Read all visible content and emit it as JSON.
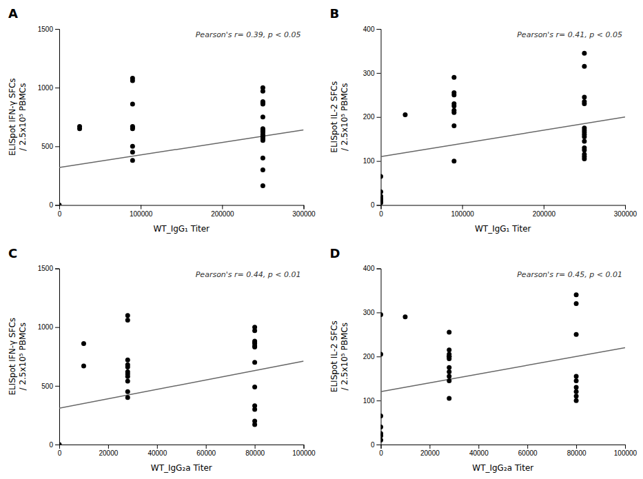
{
  "chart_data": [
    {
      "type": "scatter",
      "title": "A",
      "xlabel": "WT_IgG₁ Titer",
      "ylabel": "ELISpot IFN-γ SFCs\n/ 2.5x10⁵ PBMCs",
      "annotations": [
        "Pearson's r= 0.39, p < 0.05"
      ],
      "xlim": [
        0,
        300000
      ],
      "ylim": [
        0,
        1500
      ],
      "xticks": [
        0,
        100000,
        200000,
        300000
      ],
      "yticks": [
        0,
        500,
        1000,
        1500
      ],
      "grid": false,
      "series": [
        {
          "type": "scatter",
          "color": "#000000",
          "x": [
            0,
            25000,
            25000,
            90000,
            90000,
            90000,
            90000,
            90000,
            90000,
            90000,
            90000,
            90000,
            250000,
            250000,
            250000,
            250000,
            250000,
            250000,
            250000,
            250000,
            250000,
            250000,
            250000,
            250000,
            250000,
            250000,
            250000,
            250000,
            250000,
            250000,
            250000,
            250000
          ],
          "values": [
            0,
            650,
            670,
            1080,
            1060,
            860,
            670,
            660,
            650,
            500,
            450,
            380,
            1000,
            970,
            880,
            870,
            870,
            860,
            750,
            650,
            640,
            630,
            620,
            600,
            590,
            580,
            570,
            560,
            550,
            400,
            300,
            165
          ]
        },
        {
          "type": "line",
          "color": "#666666",
          "x": [
            0,
            300000
          ],
          "values": [
            320,
            640
          ]
        }
      ]
    },
    {
      "type": "scatter",
      "title": "B",
      "xlabel": "WT_IgG₁ Titer",
      "ylabel": "ELISpot IL-2 SFCs\n/ 2.5x10⁵ PBMCs",
      "annotations": [
        "Pearson's r= 0.41, p < 0.05"
      ],
      "xlim": [
        0,
        300000
      ],
      "ylim": [
        0,
        400
      ],
      "xticks": [
        0,
        100000,
        200000,
        300000
      ],
      "yticks": [
        0,
        100,
        200,
        300,
        400
      ],
      "grid": false,
      "series": [
        {
          "type": "scatter",
          "color": "#000000",
          "x": [
            0,
            0,
            0,
            0,
            0,
            0,
            0,
            30000,
            90000,
            90000,
            90000,
            90000,
            90000,
            90000,
            90000,
            90000,
            90000,
            250000,
            250000,
            250000,
            250000,
            250000,
            250000,
            250000,
            250000,
            250000,
            250000,
            250000,
            250000,
            250000,
            250000,
            250000,
            250000
          ],
          "values": [
            65,
            30,
            20,
            15,
            12,
            8,
            5,
            205,
            290,
            255,
            250,
            230,
            225,
            215,
            210,
            180,
            100,
            345,
            315,
            245,
            235,
            230,
            175,
            170,
            165,
            160,
            155,
            145,
            130,
            125,
            115,
            110,
            105
          ]
        },
        {
          "type": "line",
          "color": "#666666",
          "x": [
            0,
            300000
          ],
          "values": [
            110,
            200
          ]
        }
      ]
    },
    {
      "type": "scatter",
      "title": "C",
      "xlabel": "WT_IgG₂a Titer",
      "ylabel": "ELISpot IFN-γ SFCs\n/ 2.5x10⁵ PBMCs",
      "annotations": [
        "Pearson's r= 0.44, p < 0.01"
      ],
      "xlim": [
        0,
        100000
      ],
      "ylim": [
        0,
        1500
      ],
      "xticks": [
        0,
        20000,
        40000,
        60000,
        80000,
        100000
      ],
      "yticks": [
        0,
        500,
        1000,
        1500
      ],
      "grid": false,
      "series": [
        {
          "type": "scatter",
          "color": "#000000",
          "x": [
            0,
            10000,
            10000,
            28000,
            28000,
            28000,
            28000,
            28000,
            28000,
            28000,
            28000,
            28000,
            28000,
            28000,
            80000,
            80000,
            80000,
            80000,
            80000,
            80000,
            80000,
            80000,
            80000,
            80000,
            80000,
            80000,
            80000
          ],
          "values": [
            0,
            860,
            670,
            1100,
            1060,
            720,
            680,
            660,
            620,
            600,
            580,
            540,
            450,
            400,
            1000,
            970,
            880,
            870,
            860,
            840,
            830,
            700,
            490,
            330,
            300,
            200,
            170
          ]
        },
        {
          "type": "line",
          "color": "#666666",
          "x": [
            0,
            100000
          ],
          "values": [
            310,
            710
          ]
        }
      ]
    },
    {
      "type": "scatter",
      "title": "D",
      "xlabel": "WT_IgG₂a Titer",
      "ylabel": "ELISpot IL-2 SFCs\n/ 2.5x10⁵ PBMCs",
      "annotations": [
        "Pearson's r= 0.45, p < 0.01"
      ],
      "xlim": [
        0,
        100000
      ],
      "ylim": [
        0,
        400
      ],
      "xticks": [
        0,
        20000,
        40000,
        60000,
        80000,
        100000
      ],
      "yticks": [
        0,
        100,
        200,
        300,
        400
      ],
      "grid": false,
      "series": [
        {
          "type": "scatter",
          "color": "#000000",
          "x": [
            0,
            0,
            0,
            0,
            0,
            0,
            0,
            10000,
            28000,
            28000,
            28000,
            28000,
            28000,
            28000,
            28000,
            28000,
            28000,
            28000,
            28000,
            80000,
            80000,
            80000,
            80000,
            80000,
            80000,
            80000,
            80000,
            80000
          ],
          "values": [
            295,
            205,
            65,
            40,
            25,
            20,
            10,
            290,
            255,
            215,
            205,
            200,
            200,
            195,
            175,
            165,
            155,
            145,
            105,
            340,
            320,
            250,
            155,
            145,
            130,
            120,
            110,
            100
          ]
        },
        {
          "type": "line",
          "color": "#666666",
          "x": [
            0,
            100000
          ],
          "values": [
            120,
            220
          ]
        }
      ]
    }
  ]
}
